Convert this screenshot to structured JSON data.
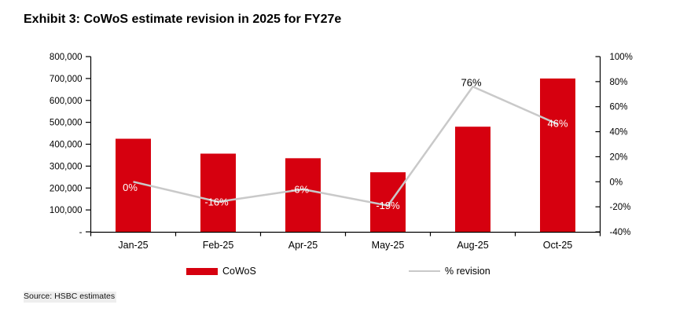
{
  "title": "Exhibit 3: CoWoS estimate revision in 2025 for FY27e",
  "source": "Source: HSBC estimates",
  "legend": {
    "bar_label": "CoWoS",
    "line_label": "% revision"
  },
  "colors": {
    "bar": "#D6000F",
    "line": "#C9C9C9",
    "axis": "#000000",
    "text": "#000000",
    "label_on_bar": "#FFFFFF",
    "label_above_line": "#000000"
  },
  "chart_data": {
    "type": "bar",
    "subtype": "bar + line combo with dual y-axes",
    "title": "Exhibit 3: CoWoS estimate revision in 2025 for FY27e",
    "categories": [
      "Jan-25",
      "Feb-25",
      "Apr-25",
      "May-25",
      "Aug-25",
      "Oct-25"
    ],
    "series": [
      {
        "name": "CoWoS",
        "type": "bar",
        "axis": "left",
        "values": [
          425000,
          357000,
          336000,
          272000,
          480000,
          700000
        ]
      },
      {
        "name": "% revision",
        "type": "line",
        "axis": "right",
        "values": [
          0,
          -16,
          -6,
          -19,
          76,
          46
        ],
        "point_labels": [
          "0%",
          "-16%",
          "-6%",
          "-19%",
          "76%",
          "46%"
        ],
        "point_label_colors": [
          "#FFFFFF",
          "#FFFFFF",
          "#FFFFFF",
          "#FFFFFF",
          "#000000",
          "#FFFFFF"
        ],
        "point_label_offsets": [
          [
            -4,
            7
          ],
          [
            -2,
            0
          ],
          [
            -4,
            0
          ],
          [
            0,
            0
          ],
          [
            -2,
            -5
          ],
          [
            0,
            -1
          ]
        ]
      }
    ],
    "left_axis": {
      "min": 0,
      "max": 800000,
      "step": 100000,
      "labels_top_to_bottom": [
        "800,000",
        "700,000",
        "600,000",
        "500,000",
        "400,000",
        "300,000",
        "200,000",
        "100,000",
        "-"
      ]
    },
    "right_axis": {
      "min": -40,
      "max": 100,
      "step": 20,
      "labels_top_to_bottom": [
        "100%",
        "80%",
        "60%",
        "40%",
        "20%",
        "0%",
        "-20%",
        "-40%"
      ]
    },
    "grid": false,
    "legend_position": "bottom"
  }
}
